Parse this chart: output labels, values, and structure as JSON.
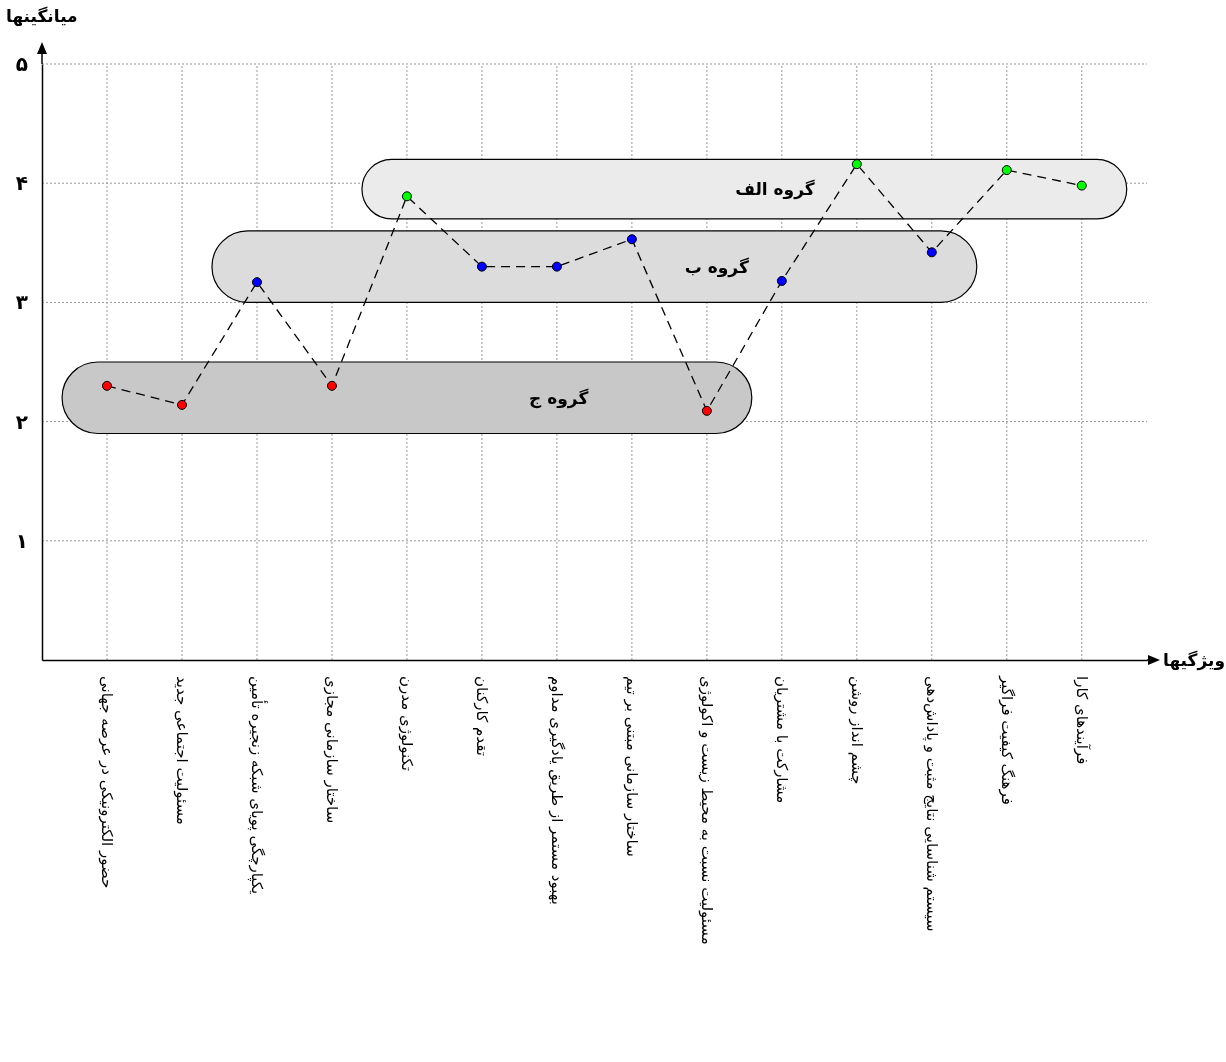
{
  "chart_data": {
    "type": "line",
    "xlabel": "ویژگیها",
    "ylabel": "میانگینها",
    "categories": [
      "حضور الکترونیکی در عرصه جهانی",
      "مسئولیت اجتماعی جدید",
      "یکپارچگی پویای شبکه زنجیره تأمین",
      "ساختار سازمانی مجازی",
      "تکنولوژی مدرن",
      "تقدم کارکنان",
      "بهبود مستمر از طریق یادگیری مداوم",
      "ساختار سازمانی مبتنی بر تیم",
      "مسئولیت نسبت به محیط زیست و اکولوژی",
      "مشارکت با مشتریان",
      "چشم انداز روشن",
      "سیستم شناسایی نتایج مثبت و پاداش‌دهی",
      "فرهنگ کیفیت فراگیر",
      "فرآیندهای کارا"
    ],
    "series": [
      {
        "color": "#000000",
        "line_style": "dashed",
        "marker": "circle",
        "colors": [
          "#ff0000",
          "#ff0000",
          "#0000ff",
          "#ff0000",
          "#00ff00",
          "#0000ff",
          "#0000ff",
          "#0000ff",
          "#ff0000",
          "#0000ff",
          "#00ff00",
          "#0000ff",
          "#00ff00",
          "#00ff00"
        ],
        "values": [
          2.3,
          2.14,
          3.17,
          2.3,
          3.89,
          3.3,
          3.3,
          3.53,
          2.09,
          3.18,
          4.16,
          3.42,
          4.11,
          3.98
        ]
      }
    ],
    "ylim": [
      0,
      5
    ],
    "yticks": [
      {
        "value": 1,
        "label": "۱"
      },
      {
        "value": 2,
        "label": "۲"
      },
      {
        "value": 3,
        "label": "۳"
      },
      {
        "value": 4,
        "label": "۴"
      },
      {
        "value": 5,
        "label": "۵"
      }
    ],
    "grid": true,
    "bands": [
      {
        "axis": "y",
        "from": 1.9,
        "to": 2.5,
        "label": "گروه ج",
        "color": "#c8c8c8"
      },
      {
        "axis": "y",
        "from": 3.0,
        "to": 3.6,
        "label": "گروه ب",
        "color": "#dcdcdc"
      },
      {
        "axis": "y",
        "from": 3.7,
        "to": 4.2,
        "label": "گروه الف",
        "color": "#ebebeb"
      }
    ]
  }
}
